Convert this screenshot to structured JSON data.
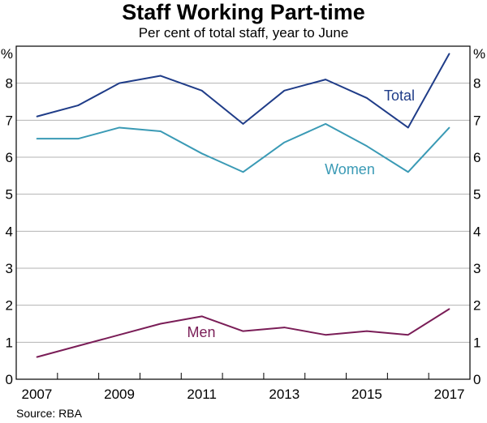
{
  "chart_data": {
    "type": "line",
    "title": "Staff Working Part-time",
    "subtitle": "Per cent of total staff, year to June",
    "ylabel_left": "%",
    "ylabel_right": "%",
    "ylim": [
      0,
      9
    ],
    "yticks": [
      0,
      1,
      2,
      3,
      4,
      5,
      6,
      7,
      8
    ],
    "x": [
      2007,
      2008,
      2009,
      2010,
      2011,
      2012,
      2013,
      2014,
      2015,
      2016,
      2017
    ],
    "xtick_labels": [
      "2007",
      "2009",
      "2011",
      "2013",
      "2015",
      "2017"
    ],
    "series": [
      {
        "name": "Total",
        "color": "#1f3c88",
        "values": [
          7.1,
          7.4,
          8.0,
          8.2,
          7.8,
          6.9,
          7.8,
          8.1,
          7.6,
          6.8,
          8.8
        ]
      },
      {
        "name": "Women",
        "color": "#3a9ab5",
        "values": [
          6.5,
          6.5,
          6.8,
          6.7,
          6.1,
          5.6,
          6.4,
          6.9,
          6.3,
          5.6,
          6.8
        ]
      },
      {
        "name": "Men",
        "color": "#7a1d57",
        "values": [
          0.6,
          0.9,
          1.2,
          1.5,
          1.7,
          1.3,
          1.4,
          1.2,
          1.3,
          1.2,
          1.9
        ]
      }
    ],
    "grid": true,
    "source": "Source:   RBA"
  }
}
